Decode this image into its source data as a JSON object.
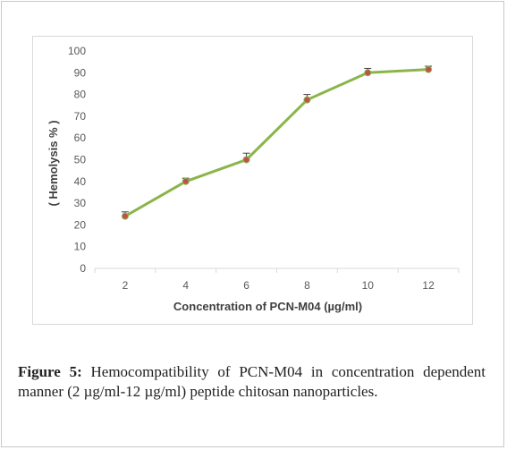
{
  "chart_data": {
    "type": "line",
    "xlabel": "Concentration of PCN-M04 (µg/ml)",
    "ylabel": "( Hemolysis % )",
    "categories": [
      "2",
      "4",
      "6",
      "8",
      "10",
      "12"
    ],
    "series": [
      {
        "values": [
          24,
          40,
          50,
          77.5,
          90,
          91.5
        ],
        "errors": [
          2,
          1.5,
          3,
          2.5,
          2,
          1.5
        ]
      }
    ],
    "ylim": [
      0,
      100
    ],
    "yticks": [
      0,
      10,
      20,
      30,
      40,
      50,
      60,
      70,
      80,
      90,
      100
    ],
    "grid": false,
    "colors": {
      "line": "#8bb54a",
      "marker": "#c0504d",
      "error": "#404040"
    }
  },
  "caption": {
    "label": "Figure 5:",
    "text": "Hemocompatibility of PCN-M04 in concentration dependent manner (2 µg/ml-12 µg/ml) peptide chitosan nanoparticles."
  }
}
